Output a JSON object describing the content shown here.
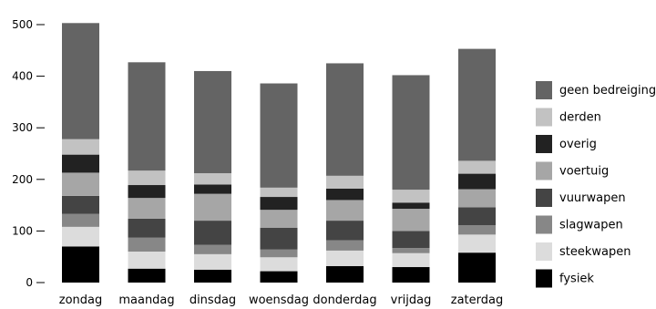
{
  "chart_data": {
    "type": "bar",
    "stacked": true,
    "title": "",
    "xlabel": "",
    "ylabel": "",
    "ylim": [
      0,
      500
    ],
    "yticks": [
      0,
      100,
      200,
      300,
      400,
      500
    ],
    "grid": false,
    "legend_position": "right",
    "categories": [
      "zondag",
      "maandag",
      "dinsdag",
      "woensdag",
      "donderdag",
      "vrijdag",
      "zaterdag"
    ],
    "series": [
      {
        "name": "fysiek",
        "color": "#000000",
        "values": [
          70,
          27,
          25,
          22,
          32,
          30,
          58
        ]
      },
      {
        "name": "steekwapen",
        "color": "#dcdcdc",
        "values": [
          38,
          33,
          30,
          27,
          30,
          27,
          35
        ]
      },
      {
        "name": "slagwapen",
        "color": "#878787",
        "values": [
          25,
          27,
          18,
          15,
          20,
          10,
          18
        ]
      },
      {
        "name": "vuurwapen",
        "color": "#444444",
        "values": [
          35,
          37,
          47,
          42,
          38,
          33,
          35
        ]
      },
      {
        "name": "voertuig",
        "color": "#a6a6a6",
        "values": [
          45,
          40,
          52,
          35,
          40,
          43,
          35
        ]
      },
      {
        "name": "overig",
        "color": "#222222",
        "values": [
          35,
          25,
          18,
          25,
          22,
          12,
          30
        ]
      },
      {
        "name": "derden",
        "color": "#c2c2c2",
        "values": [
          30,
          28,
          22,
          18,
          25,
          25,
          25
        ]
      },
      {
        "name": "geen bedreiging",
        "color": "#646464",
        "values": [
          225,
          210,
          198,
          202,
          218,
          222,
          217
        ]
      }
    ],
    "legend_order": [
      "geen bedreiging",
      "derden",
      "overig",
      "voertuig",
      "vuurwapen",
      "slagwapen",
      "steekwapen",
      "fysiek"
    ]
  }
}
